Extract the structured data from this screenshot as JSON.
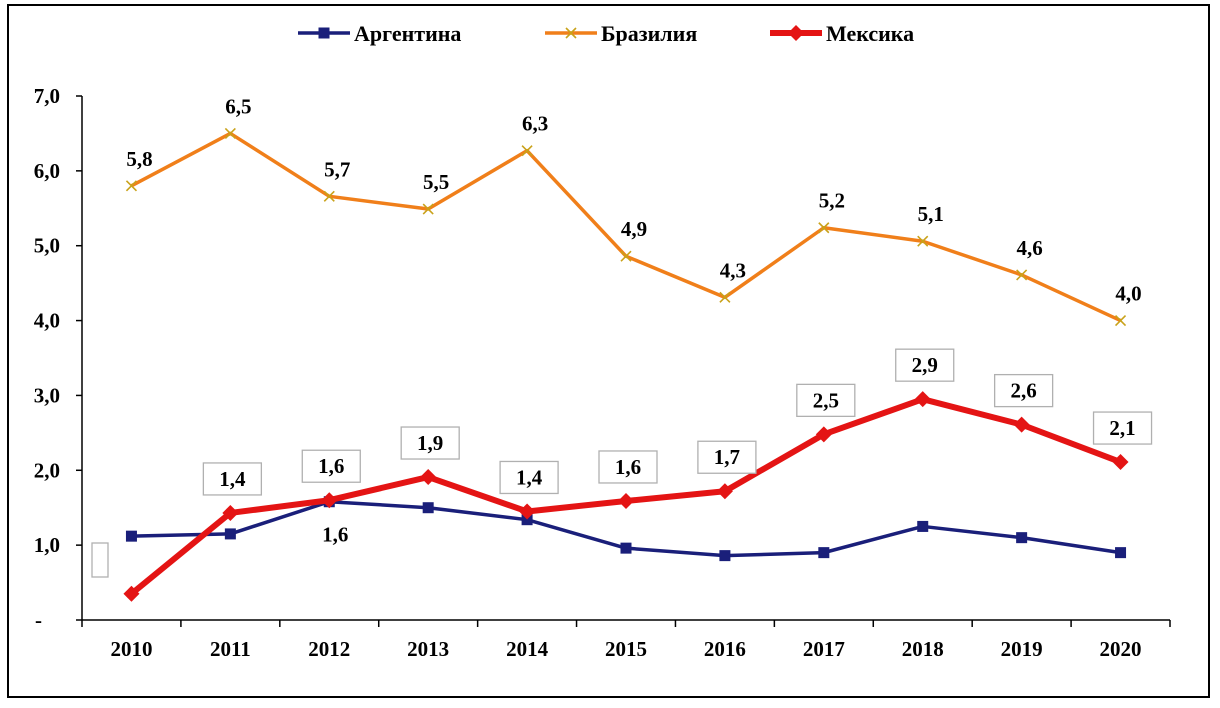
{
  "chart_data": {
    "type": "line",
    "title": "",
    "xlabel": "",
    "ylabel": "",
    "categories": [
      "2010",
      "2011",
      "2012",
      "2013",
      "2014",
      "2015",
      "2016",
      "2017",
      "2018",
      "2019",
      "2020"
    ],
    "ylim": [
      0,
      7.0
    ],
    "y_ticks": [
      "-",
      "1,0",
      "2,0",
      "3,0",
      "4,0",
      "5,0",
      "6,0",
      "7,0"
    ],
    "grid": false,
    "legend_position": "top",
    "series": [
      {
        "name": "Аргентина",
        "color": "#1a1f7a",
        "marker": "square",
        "values": [
          1.12,
          1.15,
          1.58,
          1.5,
          1.34,
          0.96,
          0.86,
          0.9,
          1.25,
          1.1,
          0.9
        ],
        "labels": [
          "",
          "",
          "1,6",
          "",
          "",
          "",
          "",
          "",
          "",
          "",
          ""
        ]
      },
      {
        "name": "Бразилия",
        "color": "#f07f1a",
        "marker": "x",
        "values": [
          5.8,
          6.5,
          5.66,
          5.49,
          6.27,
          4.86,
          4.31,
          5.24,
          5.06,
          4.61,
          4.0
        ],
        "labels": [
          "5,8",
          "6,5",
          "5,7",
          "5,5",
          "6,3",
          "4,9",
          "4,3",
          "5,2",
          "5,1",
          "4,6",
          "4,0"
        ]
      },
      {
        "name": "Мексика",
        "color": "#e41414",
        "marker": "diamond",
        "values": [
          0.35,
          1.43,
          1.6,
          1.91,
          1.45,
          1.59,
          1.72,
          2.48,
          2.95,
          2.61,
          2.11
        ],
        "labels": [
          "",
          "1,4",
          "1,6",
          "1,9",
          "1,4",
          "1,6",
          "1,7",
          "2,5",
          "2,9",
          "2,6",
          "2,1"
        ]
      }
    ]
  }
}
